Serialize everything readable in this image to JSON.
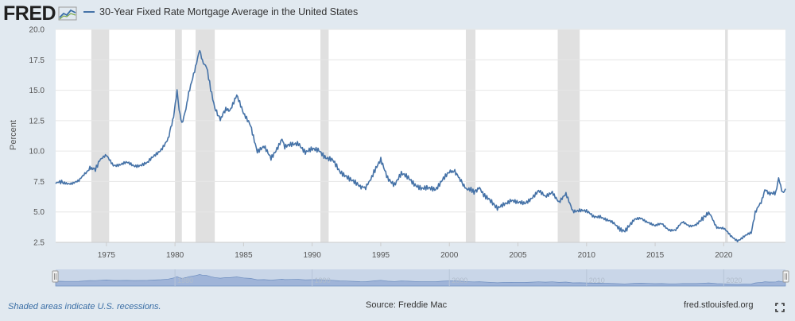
{
  "header": {
    "logo_text": "FRED",
    "title": "30-Year Fixed Rate Mortgage Average in the United States"
  },
  "footer": {
    "recession_note": "Shaded areas indicate U.S. recessions.",
    "source": "Source: Freddie Mac",
    "site": "fred.stlouisfed.org"
  },
  "icons": {
    "logo_graph": "fred-logo-graph-icon",
    "fullscreen": "fullscreen-icon",
    "navigator_handles": "drag-handle-icon"
  },
  "colors": {
    "series": "#4572a7",
    "recession": "#e0e0e0",
    "navigator_fill": "#9fb4d8",
    "background": "#e1e9f0"
  },
  "chart_data": {
    "type": "line",
    "title": "30-Year Fixed Rate Mortgage Average in the United States",
    "xlabel": "",
    "ylabel": "Percent",
    "xlim": [
      1971.3,
      2024.5
    ],
    "ylim": [
      2.5,
      20.0
    ],
    "yticks": [
      "2.5",
      "5.0",
      "7.5",
      "10.0",
      "12.5",
      "15.0",
      "17.5",
      "20.0"
    ],
    "xticks": [
      "1975",
      "1980",
      "1985",
      "1990",
      "1995",
      "2000",
      "2005",
      "2010",
      "2015",
      "2020"
    ],
    "navigator_ticks": [
      "1980",
      "1990",
      "2000",
      "2010",
      "2020"
    ],
    "grid": true,
    "legend": "top-left",
    "recessions": [
      [
        1973.9,
        1975.2
      ],
      [
        1980.0,
        1980.5
      ],
      [
        1981.5,
        1982.9
      ],
      [
        1990.6,
        1991.2
      ],
      [
        2001.2,
        2001.9
      ],
      [
        2007.9,
        2009.5
      ],
      [
        2020.1,
        2020.3
      ]
    ],
    "series": [
      {
        "name": "30-Year Fixed Rate Mortgage Average in the United States",
        "x": [
          1971.3,
          1971.6,
          1972.0,
          1972.5,
          1973.0,
          1973.5,
          1973.8,
          1974.2,
          1974.5,
          1975.0,
          1975.5,
          1976.0,
          1976.5,
          1977.0,
          1977.5,
          1978.0,
          1978.5,
          1979.0,
          1979.5,
          1979.9,
          1980.15,
          1980.3,
          1980.5,
          1980.8,
          1981.0,
          1981.5,
          1981.8,
          1982.0,
          1982.3,
          1982.6,
          1982.9,
          1983.3,
          1983.7,
          1984.0,
          1984.5,
          1985.0,
          1985.5,
          1986.0,
          1986.5,
          1987.0,
          1987.5,
          1987.8,
          1988.0,
          1988.5,
          1989.0,
          1989.5,
          1990.0,
          1990.5,
          1991.0,
          1991.5,
          1992.0,
          1992.5,
          1993.0,
          1993.5,
          1993.9,
          1994.5,
          1995.0,
          1995.5,
          1996.0,
          1996.5,
          1997.0,
          1997.5,
          1998.0,
          1998.5,
          1999.0,
          1999.5,
          2000.0,
          2000.4,
          2000.8,
          2001.2,
          2001.8,
          2002.2,
          2002.8,
          2003.5,
          2004.0,
          2004.5,
          2005.0,
          2005.5,
          2006.0,
          2006.5,
          2007.0,
          2007.5,
          2008.0,
          2008.5,
          2009.0,
          2009.5,
          2010.0,
          2010.5,
          2011.0,
          2011.5,
          2012.0,
          2012.8,
          2013.5,
          2014.0,
          2014.5,
          2015.0,
          2015.5,
          2016.0,
          2016.5,
          2017.0,
          2017.5,
          2018.0,
          2018.9,
          2019.5,
          2020.0,
          2020.5,
          2021.0,
          2021.5,
          2022.0,
          2022.3,
          2022.5,
          2022.8,
          2023.0,
          2023.3,
          2023.8,
          2024.0,
          2024.3,
          2024.5
        ],
        "values": [
          7.3,
          7.6,
          7.4,
          7.4,
          7.5,
          8.2,
          8.7,
          8.6,
          9.2,
          9.6,
          8.9,
          8.9,
          9.0,
          8.8,
          8.9,
          9.0,
          9.6,
          10.2,
          11.0,
          12.9,
          15.0,
          13.5,
          12.3,
          13.5,
          14.8,
          16.8,
          18.4,
          17.4,
          17.0,
          15.0,
          13.6,
          12.6,
          13.4,
          13.4,
          14.6,
          13.0,
          12.2,
          10.0,
          10.3,
          9.4,
          10.4,
          10.9,
          10.3,
          10.5,
          10.7,
          9.9,
          10.1,
          10.1,
          9.5,
          9.2,
          8.3,
          8.0,
          7.5,
          7.0,
          6.9,
          8.3,
          9.2,
          7.8,
          7.3,
          8.1,
          7.8,
          7.3,
          6.9,
          6.9,
          6.9,
          7.7,
          8.2,
          8.3,
          7.7,
          7.0,
          6.6,
          6.9,
          6.1,
          5.2,
          5.7,
          6.0,
          5.7,
          5.7,
          6.2,
          6.7,
          6.2,
          6.7,
          5.8,
          6.4,
          5.1,
          5.2,
          5.0,
          4.6,
          4.7,
          4.3,
          4.0,
          3.4,
          4.3,
          4.5,
          4.2,
          3.8,
          4.0,
          3.6,
          3.5,
          4.1,
          3.9,
          4.0,
          4.9,
          3.8,
          3.6,
          3.0,
          2.7,
          3.0,
          3.2,
          5.0,
          5.5,
          6.0,
          6.9,
          6.4,
          6.6,
          7.8,
          6.6,
          6.9
        ]
      }
    ]
  }
}
